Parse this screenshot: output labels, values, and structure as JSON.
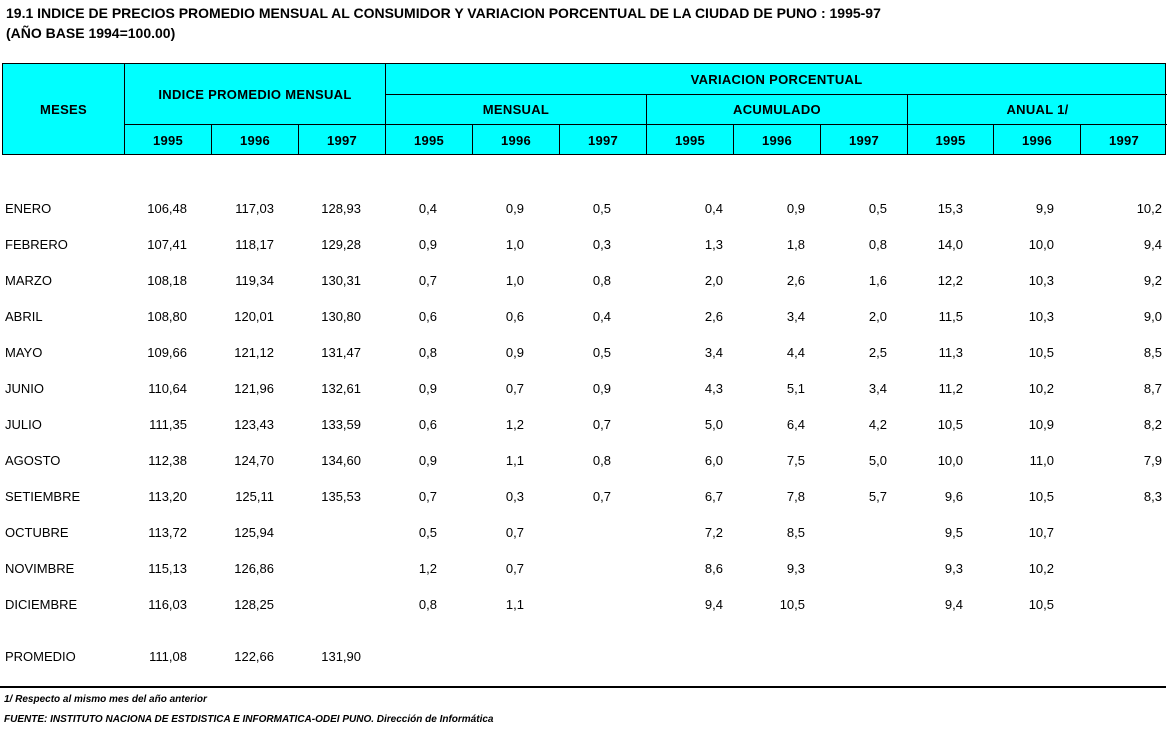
{
  "title": {
    "line1": "19.1  INDICE DE PRECIOS PROMEDIO MENSUAL AL CONSUMIDOR Y VARIACION PORCENTUAL DE LA  CIUDAD DE PUNO : 1995-97",
    "line2": "(AÑO BASE 1994=100.00)"
  },
  "header": {
    "meses": "MESES",
    "indice": "INDICE PROMEDIO MENSUAL",
    "variacion": "VARIACION PORCENTUAL",
    "mensual": "MENSUAL",
    "acumulado": "ACUMULADO",
    "anual": "ANUAL 1/",
    "years": [
      "1995",
      "1996",
      "1997",
      "1995",
      "1996",
      "1997",
      "1995",
      "1996",
      "1997",
      "1995",
      "1996",
      "1997"
    ],
    "header_color": "#00ffff"
  },
  "rows": [
    {
      "mes": "ENERO",
      "v": [
        "106,48",
        "117,03",
        "128,93",
        "0,4",
        "0,9",
        "0,5",
        "0,4",
        "0,9",
        "0,5",
        "15,3",
        "9,9",
        "10,2"
      ]
    },
    {
      "mes": "FEBRERO",
      "v": [
        "107,41",
        "118,17",
        "129,28",
        "0,9",
        "1,0",
        "0,3",
        "1,3",
        "1,8",
        "0,8",
        "14,0",
        "10,0",
        "9,4"
      ]
    },
    {
      "mes": "MARZO",
      "v": [
        "108,18",
        "119,34",
        "130,31",
        "0,7",
        "1,0",
        "0,8",
        "2,0",
        "2,6",
        "1,6",
        "12,2",
        "10,3",
        "9,2"
      ]
    },
    {
      "mes": "ABRIL",
      "v": [
        "108,80",
        "120,01",
        "130,80",
        "0,6",
        "0,6",
        "0,4",
        "2,6",
        "3,4",
        "2,0",
        "11,5",
        "10,3",
        "9,0"
      ]
    },
    {
      "mes": "MAYO",
      "v": [
        "109,66",
        "121,12",
        "131,47",
        "0,8",
        "0,9",
        "0,5",
        "3,4",
        "4,4",
        "2,5",
        "11,3",
        "10,5",
        "8,5"
      ]
    },
    {
      "mes": "JUNIO",
      "v": [
        "110,64",
        "121,96",
        "132,61",
        "0,9",
        "0,7",
        "0,9",
        "4,3",
        "5,1",
        "3,4",
        "11,2",
        "10,2",
        "8,7"
      ]
    },
    {
      "mes": "JULIO",
      "v": [
        "111,35",
        "123,43",
        "133,59",
        "0,6",
        "1,2",
        "0,7",
        "5,0",
        "6,4",
        "4,2",
        "10,5",
        "10,9",
        "8,2"
      ]
    },
    {
      "mes": "AGOSTO",
      "v": [
        "112,38",
        "124,70",
        "134,60",
        "0,9",
        "1,1",
        "0,8",
        "6,0",
        "7,5",
        "5,0",
        "10,0",
        "11,0",
        "7,9"
      ]
    },
    {
      "mes": "SETIEMBRE",
      "v": [
        "113,20",
        "125,11",
        "135,53",
        "0,7",
        "0,3",
        "0,7",
        "6,7",
        "7,8",
        "5,7",
        "9,6",
        "10,5",
        "8,3"
      ]
    },
    {
      "mes": "OCTUBRE",
      "v": [
        "113,72",
        "125,94",
        "",
        "0,5",
        "0,7",
        "",
        "7,2",
        "8,5",
        "",
        "9,5",
        "10,7",
        ""
      ]
    },
    {
      "mes": "NOVIMBRE",
      "v": [
        "115,13",
        "126,86",
        "",
        "1,2",
        "0,7",
        "",
        "8,6",
        "9,3",
        "",
        "9,3",
        "10,2",
        ""
      ]
    },
    {
      "mes": "DICIEMBRE",
      "v": [
        "116,03",
        "128,25",
        "",
        "0,8",
        "1,1",
        "",
        "9,4",
        "10,5",
        "",
        "9,4",
        "10,5",
        ""
      ]
    }
  ],
  "promedio": {
    "mes": "PROMEDIO",
    "v": [
      "111,08",
      "122,66",
      "131,90"
    ]
  },
  "footnote": "1/  Respecto al mismo mes del año anterior",
  "source": "FUENTE: INSTITUTO NACIONA DE ESTDISTICA E INFORMATICA-ODEI PUNO.   Dirección de Informática"
}
